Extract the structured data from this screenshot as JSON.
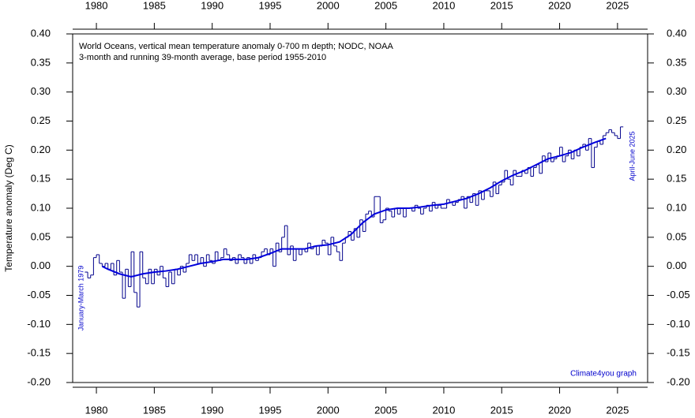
{
  "chart_data": {
    "type": "step-line",
    "title": "World Oceans, vertical mean temperature anomaly 0-700 m depth; NODC, NOAA",
    "subtitle": "3-month and running 39-month average, base period 1955-2010",
    "y_label": "Temperature anomaly (Deg C)",
    "annotations": [
      "January-March 1979",
      "April-June 2025",
      "Climate4you graph"
    ],
    "xlim": [
      1977.95,
      2027.6
    ],
    "xticks": [
      1980,
      1985,
      1990,
      1995,
      2000,
      2005,
      2010,
      2015,
      2020,
      2025
    ],
    "ylim": [
      -0.2,
      0.4
    ],
    "yticks": [
      {
        "value": -0.2,
        "label": "-0.20"
      },
      {
        "value": -0.15,
        "label": "-0.15"
      },
      {
        "value": -0.1,
        "label": "-0.10"
      },
      {
        "value": -0.05,
        "label": "-0.05"
      },
      {
        "value": 0,
        "label": "0.00"
      },
      {
        "value": 0.05,
        "label": "0.05"
      },
      {
        "value": 0.1,
        "label": "0.10"
      },
      {
        "value": 0.15,
        "label": "0.15"
      },
      {
        "value": 0.2,
        "label": "0.20"
      },
      {
        "value": 0.25,
        "label": "0.25"
      },
      {
        "value": 0.3,
        "label": "0.30"
      },
      {
        "value": 0.35,
        "label": "0.35"
      },
      {
        "value": 0.4,
        "label": "0.40"
      }
    ],
    "series": [
      {
        "name": "3-month",
        "color": "#00008b",
        "style": "step",
        "x": [
          1979,
          1979.25,
          1979.5,
          1979.75,
          1980,
          1980.25,
          1980.5,
          1980.75,
          1981,
          1981.25,
          1981.5,
          1981.75,
          1982,
          1982.25,
          1982.5,
          1982.75,
          1983,
          1983.25,
          1983.5,
          1983.75,
          1984,
          1984.25,
          1984.5,
          1984.75,
          1985,
          1985.25,
          1985.5,
          1985.75,
          1986,
          1986.25,
          1986.5,
          1986.75,
          1987,
          1987.25,
          1987.5,
          1987.75,
          1988,
          1988.25,
          1988.5,
          1988.75,
          1989,
          1989.25,
          1989.5,
          1989.75,
          1990,
          1990.25,
          1990.5,
          1990.75,
          1991,
          1991.25,
          1991.5,
          1991.75,
          1992,
          1992.25,
          1992.5,
          1992.75,
          1993,
          1993.25,
          1993.5,
          1993.75,
          1994,
          1994.25,
          1994.5,
          1994.75,
          1995,
          1995.25,
          1995.5,
          1995.75,
          1996,
          1996.25,
          1996.5,
          1996.75,
          1997,
          1997.25,
          1997.5,
          1997.75,
          1998,
          1998.25,
          1998.5,
          1998.75,
          1999,
          1999.25,
          1999.5,
          1999.75,
          2000,
          2000.25,
          2000.5,
          2000.75,
          2001,
          2001.25,
          2001.5,
          2001.75,
          2002,
          2002.25,
          2002.5,
          2002.75,
          2003,
          2003.25,
          2003.5,
          2003.75,
          2004,
          2004.25,
          2004.5,
          2004.75,
          2005,
          2005.25,
          2005.5,
          2005.75,
          2006,
          2006.25,
          2006.5,
          2006.75,
          2007,
          2007.25,
          2007.5,
          2007.75,
          2008,
          2008.25,
          2008.5,
          2008.75,
          2009,
          2009.25,
          2009.5,
          2009.75,
          2010,
          2010.25,
          2010.5,
          2010.75,
          2011,
          2011.25,
          2011.5,
          2011.75,
          2012,
          2012.25,
          2012.5,
          2012.75,
          2013,
          2013.25,
          2013.5,
          2013.75,
          2014,
          2014.25,
          2014.5,
          2014.75,
          2015,
          2015.25,
          2015.5,
          2015.75,
          2016,
          2016.25,
          2016.5,
          2016.75,
          2017,
          2017.25,
          2017.5,
          2017.75,
          2018,
          2018.25,
          2018.5,
          2018.75,
          2019,
          2019.25,
          2019.5,
          2019.75,
          2020,
          2020.25,
          2020.5,
          2020.75,
          2021,
          2021.25,
          2021.5,
          2021.75,
          2022,
          2022.25,
          2022.5,
          2022.75,
          2023,
          2023.25,
          2023.5,
          2023.75,
          2024,
          2024.25,
          2024.5,
          2024.75,
          2025,
          2025.25
        ],
        "values": [
          -0.01,
          -0.02,
          -0.015,
          0.015,
          0.02,
          0.005,
          0,
          0.005,
          -0.005,
          0.005,
          -0.015,
          0.01,
          -0.01,
          -0.055,
          -0.005,
          -0.035,
          0.025,
          -0.045,
          -0.07,
          0.025,
          -0.02,
          -0.03,
          -0.005,
          -0.03,
          -0.005,
          -0.015,
          0,
          -0.02,
          -0.035,
          -0.01,
          -0.03,
          -0.005,
          -0.015,
          0,
          -0.01,
          0.005,
          0.02,
          0.01,
          0.02,
          0.005,
          0.015,
          0,
          0.02,
          0.01,
          0.005,
          0.025,
          0.01,
          0.015,
          0.03,
          0.02,
          0.01,
          0.015,
          0.005,
          0.02,
          0.015,
          0.005,
          0.015,
          0.005,
          0.02,
          0.01,
          0.015,
          0.025,
          0.03,
          0.02,
          0.03,
          0,
          0.04,
          0.025,
          0.05,
          0.07,
          0.02,
          0.035,
          0.01,
          0.03,
          0.02,
          0.03,
          0.025,
          0.04,
          0.03,
          0.035,
          0.02,
          0.035,
          0.045,
          0.04,
          0.02,
          0.05,
          0.035,
          0.025,
          0.01,
          0.04,
          0.05,
          0.06,
          0.045,
          0.065,
          0.05,
          0.08,
          0.06,
          0.09,
          0.095,
          0.085,
          0.12,
          0.12,
          0.075,
          0.08,
          0.1,
          0.095,
          0.085,
          0.1,
          0.09,
          0.1,
          0.085,
          0.1,
          0.1,
          0.095,
          0.105,
          0.1,
          0.09,
          0.1,
          0.105,
          0.095,
          0.11,
          0.1,
          0.105,
          0.1,
          0.1,
          0.115,
          0.11,
          0.105,
          0.11,
          0.115,
          0.12,
          0.1,
          0.12,
          0.11,
          0.125,
          0.105,
          0.13,
          0.115,
          0.13,
          0.13,
          0.12,
          0.145,
          0.125,
          0.14,
          0.145,
          0.165,
          0.15,
          0.14,
          0.165,
          0.155,
          0.155,
          0.165,
          0.16,
          0.17,
          0.155,
          0.17,
          0.175,
          0.16,
          0.19,
          0.18,
          0.195,
          0.18,
          0.185,
          0.19,
          0.205,
          0.18,
          0.19,
          0.2,
          0.185,
          0.2,
          0.19,
          0.205,
          0.21,
          0.2,
          0.22,
          0.17,
          0.205,
          0.215,
          0.21,
          0.225,
          0.23,
          0.235,
          0.23,
          0.225,
          0.22,
          0.24
        ]
      },
      {
        "name": "39-month average",
        "color": "#0000dd",
        "style": "line",
        "x": [
          1980.5,
          1981,
          1982,
          1983,
          1984,
          1985,
          1986,
          1987,
          1988,
          1989,
          1990,
          1991,
          1992,
          1993,
          1994,
          1995,
          1996,
          1997,
          1998,
          1999,
          2000,
          2001,
          2002,
          2003,
          2004,
          2005,
          2006,
          2007,
          2008,
          2009,
          2010,
          2011,
          2012,
          2013,
          2014,
          2015,
          2016,
          2017,
          2018,
          2019,
          2020,
          2021,
          2022,
          2023,
          2024
        ],
        "values": [
          0,
          -0.005,
          -0.013,
          -0.018,
          -0.013,
          -0.01,
          -0.008,
          -0.005,
          0,
          0.005,
          0.008,
          0.012,
          0.012,
          0.012,
          0.015,
          0.022,
          0.03,
          0.03,
          0.03,
          0.035,
          0.037,
          0.042,
          0.055,
          0.075,
          0.09,
          0.097,
          0.1,
          0.1,
          0.102,
          0.105,
          0.107,
          0.112,
          0.117,
          0.125,
          0.135,
          0.147,
          0.157,
          0.165,
          0.175,
          0.185,
          0.19,
          0.196,
          0.205,
          0.213,
          0.22
        ]
      }
    ]
  }
}
